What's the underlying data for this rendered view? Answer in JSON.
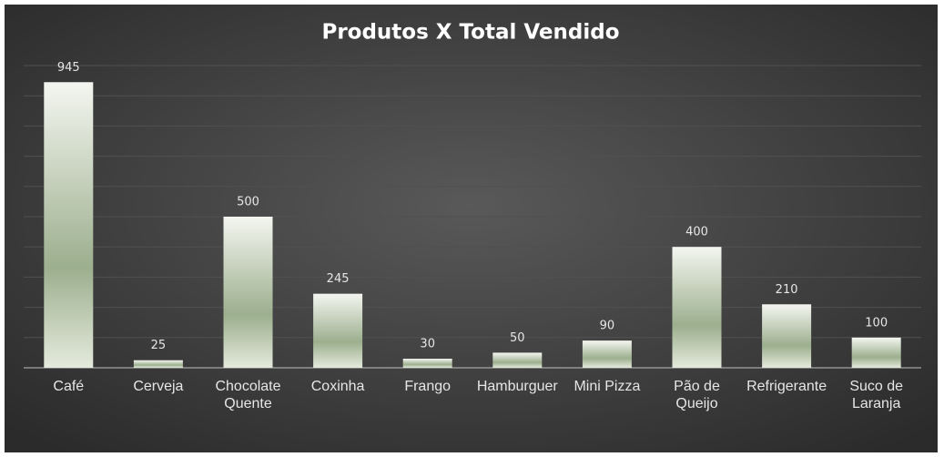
{
  "chart_data": {
    "type": "bar",
    "title": "Produtos X Total Vendido",
    "categories": [
      "Café",
      "Cerveja",
      "Chocolate Quente",
      "Coxinha",
      "Frango",
      "Hamburguer",
      "Mini Pizza",
      "Pão de Queijo",
      "Refrigerante",
      "Suco de Laranja"
    ],
    "values": [
      945,
      25,
      500,
      245,
      30,
      50,
      90,
      400,
      210,
      100
    ],
    "color": "#9caf8e",
    "ylim": [
      0,
      1000
    ],
    "yticks": [
      0,
      100,
      200,
      300,
      400,
      500,
      600,
      700,
      800,
      900,
      1000
    ],
    "grid": true
  }
}
